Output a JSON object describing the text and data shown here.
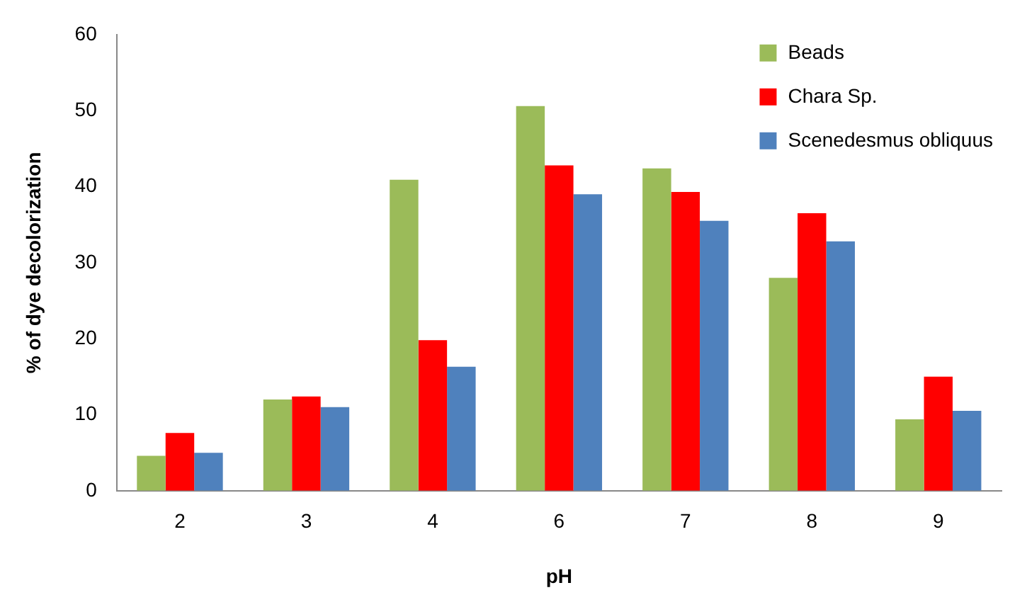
{
  "chart_data": {
    "type": "bar",
    "xlabel": "pH",
    "ylabel": "% of dye decolorization",
    "categories": [
      "2",
      "3",
      "4",
      "6",
      "7",
      "8",
      "9"
    ],
    "series": [
      {
        "name": "Beads",
        "color": "#9bbb59",
        "values": [
          4.6,
          12,
          40.9,
          50.6,
          42.4,
          28,
          9.4
        ]
      },
      {
        "name": "Chara Sp.",
        "color": "#ff0000",
        "values": [
          7.6,
          12.4,
          19.8,
          42.8,
          39.3,
          36.5,
          15
        ]
      },
      {
        "name": "Scenedesmus obliquus",
        "color": "#4f81bd",
        "values": [
          5,
          11,
          16.3,
          39,
          35.5,
          32.8,
          10.5
        ]
      }
    ],
    "ylim": [
      0,
      60
    ],
    "yticks": [
      0,
      10,
      20,
      30,
      40,
      50,
      60
    ],
    "grid": false,
    "legend": "top right"
  }
}
